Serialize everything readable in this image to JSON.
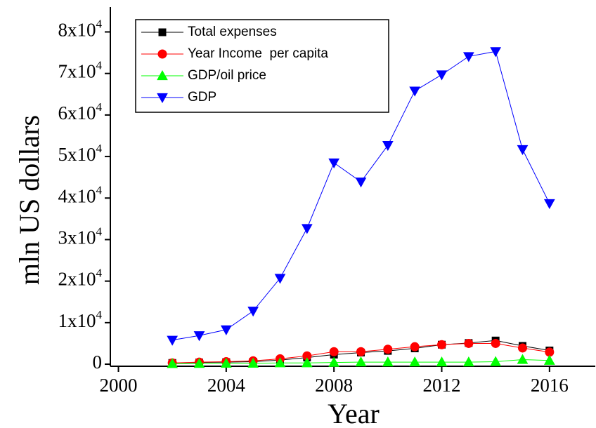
{
  "chart_data": {
    "type": "line",
    "x_label": "Year",
    "y_label": "mln US dollars",
    "x": [
      2002,
      2003,
      2004,
      2005,
      2006,
      2007,
      2008,
      2009,
      2010,
      2011,
      2012,
      2013,
      2014,
      2015,
      2016
    ],
    "series": [
      {
        "name": "Total expenses",
        "color": "#000000",
        "marker": "square",
        "values": [
          300,
          400,
          500,
          600,
          1000,
          1600,
          2300,
          2800,
          3200,
          3800,
          4700,
          5100,
          5700,
          4400,
          3300
        ]
      },
      {
        "name": "Year Income  per capita",
        "color": "#ff0000",
        "marker": "circle",
        "values": [
          300,
          500,
          600,
          800,
          1300,
          2000,
          3000,
          3000,
          3600,
          4200,
          4700,
          5000,
          5000,
          3900,
          2900
        ]
      },
      {
        "name": "GDP/oil price",
        "color": "#00ff00",
        "marker": "triangle-up",
        "values": [
          100,
          150,
          200,
          200,
          300,
          300,
          400,
          500,
          500,
          500,
          500,
          500,
          600,
          1100,
          900
        ]
      },
      {
        "name": "GDP",
        "color": "#0000ff",
        "marker": "triangle-down",
        "values": [
          5800,
          6900,
          8300,
          12800,
          20700,
          32700,
          48500,
          43900,
          52700,
          65800,
          69700,
          74100,
          75300,
          51700,
          38700
        ]
      }
    ],
    "xlim": [
      1999.7,
      2017.7
    ],
    "xticks": [
      2000,
      2004,
      2008,
      2012,
      2016
    ],
    "ylim": [
      -500,
      86000
    ],
    "yticks": [
      0,
      {
        "value": 10000,
        "label": "1x10",
        "sup": "4"
      },
      {
        "value": 20000,
        "label": "2x10",
        "sup": "4"
      },
      {
        "value": 30000,
        "label": "3x10",
        "sup": "4"
      },
      {
        "value": 40000,
        "label": "4x10",
        "sup": "4"
      },
      {
        "value": 50000,
        "label": "5x10",
        "sup": "4"
      },
      {
        "value": 60000,
        "label": "6x10",
        "sup": "4"
      },
      {
        "value": 70000,
        "label": "7x10",
        "sup": "4"
      },
      {
        "value": 80000,
        "label": "8x10",
        "sup": "4"
      }
    ],
    "legend": "upper-left",
    "grid": false
  }
}
